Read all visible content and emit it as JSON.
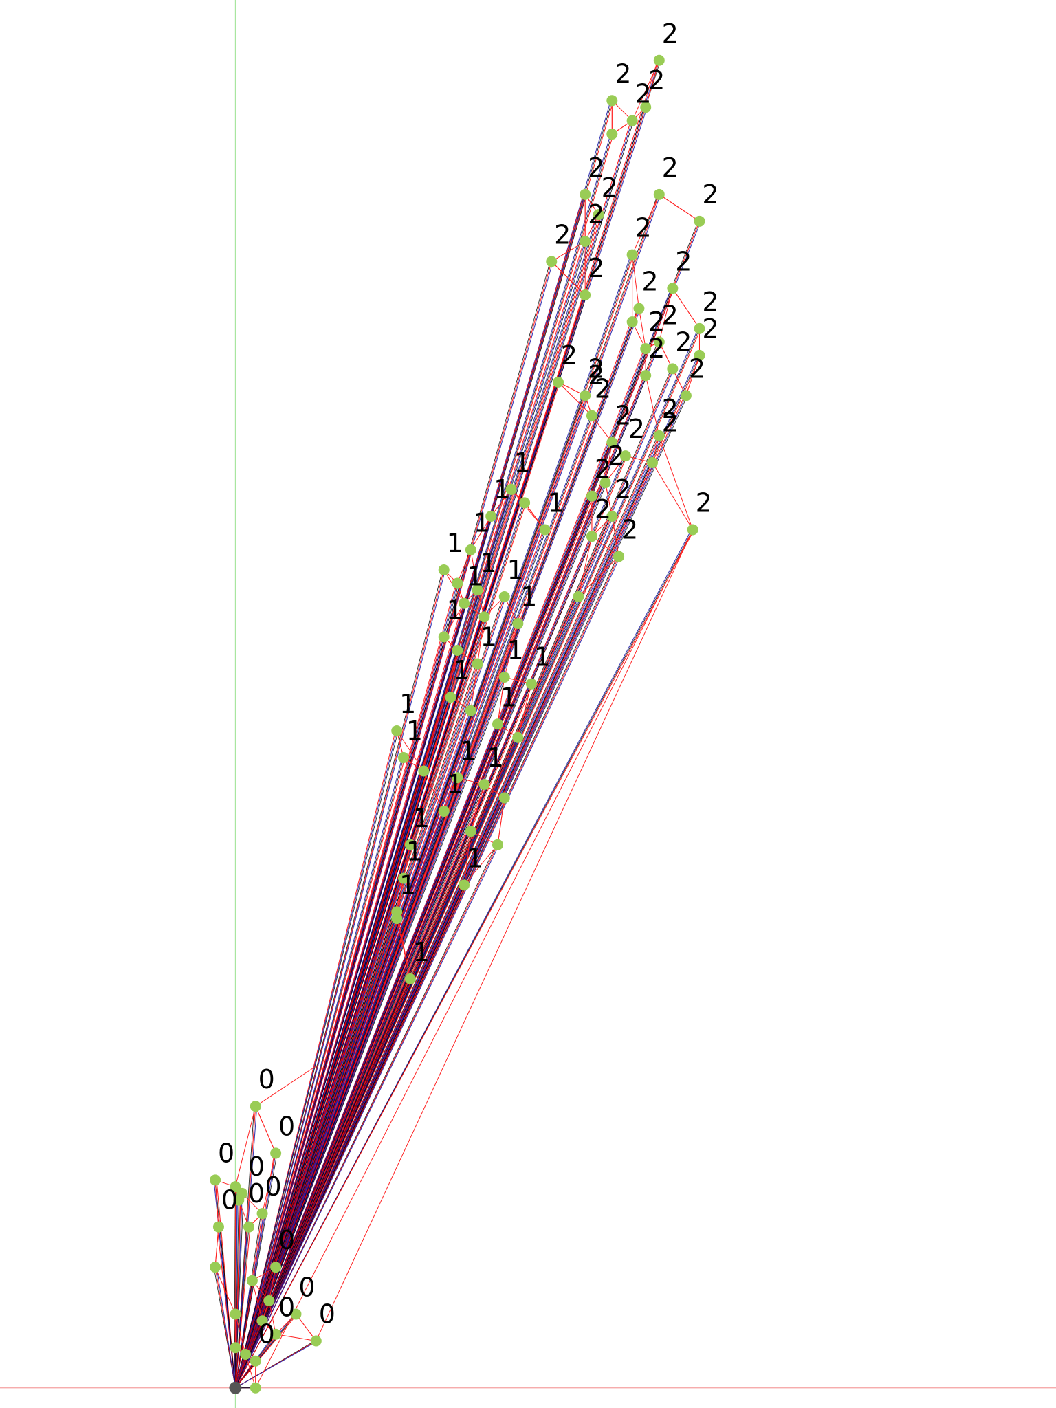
{
  "chart_data": {
    "type": "scatter",
    "title": "",
    "xlabel": "",
    "ylabel": "",
    "grid": false,
    "legend": "none",
    "axes_colors": {
      "x_axis": "#f4a0a0",
      "y_axis": "#a8e6a0"
    },
    "node_color": "#99cc55",
    "root_color": "#555555",
    "edge_colors": {
      "root_edges": [
        "#000000",
        "#ff0000",
        "#1a1aa8"
      ],
      "cluster_edges": "#ff2222"
    },
    "root": {
      "x": 0,
      "y": 0
    },
    "clusters": [
      {
        "label": "0",
        "points": [
          [
            0.3,
            4.2
          ],
          [
            0.6,
            3.5
          ],
          [
            -0.3,
            3.1
          ],
          [
            0.0,
            3.0
          ],
          [
            0.1,
            2.9
          ],
          [
            0.05,
            2.8
          ],
          [
            0.4,
            2.6
          ],
          [
            -0.25,
            2.4
          ],
          [
            0.2,
            2.4
          ],
          [
            -0.3,
            1.8
          ],
          [
            0.6,
            1.8
          ],
          [
            0.25,
            1.6
          ],
          [
            1.2,
            0.7
          ],
          [
            0.5,
            1.3
          ],
          [
            0.9,
            1.1
          ],
          [
            0.0,
            1.1
          ],
          [
            0.3,
            0.4
          ],
          [
            0.6,
            0.8
          ],
          [
            0.15,
            0.5
          ],
          [
            0.3,
            0.0
          ],
          [
            0.0,
            0.6
          ],
          [
            0.4,
            1.0
          ]
        ],
        "labelled": [
          [
            0.3,
            4.2
          ],
          [
            0.6,
            3.5
          ],
          [
            -0.3,
            3.1
          ],
          [
            0.15,
            2.9
          ],
          [
            0.15,
            2.5
          ],
          [
            0.4,
            2.6
          ],
          [
            -0.25,
            2.4
          ],
          [
            0.6,
            1.8
          ],
          [
            0.9,
            1.1
          ],
          [
            1.2,
            0.7
          ],
          [
            0.3,
            0.4
          ],
          [
            0.6,
            0.8
          ]
        ]
      },
      {
        "label": "1",
        "points": [
          [
            4.1,
            13.4
          ],
          [
            4.3,
            13.2
          ],
          [
            3.8,
            13.0
          ],
          [
            4.6,
            12.8
          ],
          [
            3.5,
            12.5
          ],
          [
            3.1,
            12.2
          ],
          [
            3.3,
            12.0
          ],
          [
            3.6,
            11.9
          ],
          [
            4.0,
            11.8
          ],
          [
            3.4,
            11.7
          ],
          [
            3.7,
            11.5
          ],
          [
            4.2,
            11.4
          ],
          [
            3.1,
            11.2
          ],
          [
            3.3,
            11.0
          ],
          [
            3.6,
            10.8
          ],
          [
            4.0,
            10.6
          ],
          [
            4.4,
            10.5
          ],
          [
            3.2,
            10.3
          ],
          [
            3.5,
            10.1
          ],
          [
            3.9,
            9.9
          ],
          [
            4.2,
            9.7
          ],
          [
            2.4,
            9.8
          ],
          [
            2.5,
            9.4
          ],
          [
            2.8,
            9.2
          ],
          [
            3.3,
            9.1
          ],
          [
            3.7,
            9.0
          ],
          [
            4.0,
            8.8
          ],
          [
            3.1,
            8.6
          ],
          [
            3.5,
            8.3
          ],
          [
            2.6,
            8.1
          ],
          [
            2.5,
            7.6
          ],
          [
            3.4,
            7.5
          ],
          [
            2.4,
            7.1
          ],
          [
            2.6,
            6.1
          ],
          [
            2.4,
            7.0
          ],
          [
            3.9,
            8.1
          ]
        ],
        "labelled": [
          [
            4.1,
            13.4
          ],
          [
            3.8,
            13.0
          ],
          [
            4.6,
            12.8
          ],
          [
            3.5,
            12.5
          ],
          [
            3.1,
            12.2
          ],
          [
            3.6,
            11.9
          ],
          [
            4.0,
            11.8
          ],
          [
            3.4,
            11.7
          ],
          [
            4.2,
            11.4
          ],
          [
            3.1,
            11.2
          ],
          [
            3.6,
            10.8
          ],
          [
            4.0,
            10.6
          ],
          [
            4.4,
            10.5
          ],
          [
            3.2,
            10.3
          ],
          [
            3.9,
            9.9
          ],
          [
            2.4,
            9.8
          ],
          [
            2.5,
            9.4
          ],
          [
            3.3,
            9.1
          ],
          [
            3.7,
            9.0
          ],
          [
            3.1,
            8.6
          ],
          [
            2.6,
            8.1
          ],
          [
            2.5,
            7.6
          ],
          [
            3.4,
            7.5
          ],
          [
            2.4,
            7.1
          ],
          [
            2.6,
            6.1
          ]
        ]
      },
      {
        "label": "2",
        "points": [
          [
            6.3,
            19.8
          ],
          [
            5.6,
            19.2
          ],
          [
            6.1,
            19.1
          ],
          [
            5.9,
            18.9
          ],
          [
            5.6,
            18.7
          ],
          [
            6.3,
            17.8
          ],
          [
            5.2,
            17.8
          ],
          [
            5.4,
            17.5
          ],
          [
            6.9,
            17.4
          ],
          [
            5.2,
            17.1
          ],
          [
            5.9,
            16.9
          ],
          [
            4.7,
            16.8
          ],
          [
            5.2,
            16.3
          ],
          [
            6.5,
            16.4
          ],
          [
            6.0,
            16.1
          ],
          [
            5.9,
            15.9
          ],
          [
            6.9,
            15.8
          ],
          [
            6.3,
            15.6
          ],
          [
            6.1,
            15.5
          ],
          [
            6.9,
            15.4
          ],
          [
            6.5,
            15.2
          ],
          [
            6.1,
            15.1
          ],
          [
            4.8,
            15.0
          ],
          [
            5.2,
            14.8
          ],
          [
            6.7,
            14.8
          ],
          [
            5.3,
            14.5
          ],
          [
            6.3,
            14.2
          ],
          [
            5.6,
            14.1
          ],
          [
            5.8,
            13.9
          ],
          [
            6.2,
            13.8
          ],
          [
            5.5,
            13.5
          ],
          [
            5.3,
            13.3
          ],
          [
            5.6,
            13.0
          ],
          [
            5.3,
            12.7
          ],
          [
            6.8,
            12.8
          ],
          [
            5.7,
            12.4
          ],
          [
            5.1,
            11.8
          ]
        ],
        "labelled": [
          [
            6.3,
            19.8
          ],
          [
            5.6,
            19.2
          ],
          [
            6.1,
            19.1
          ],
          [
            5.9,
            18.9
          ],
          [
            5.2,
            17.8
          ],
          [
            6.3,
            17.8
          ],
          [
            5.4,
            17.5
          ],
          [
            6.9,
            17.4
          ],
          [
            5.2,
            17.1
          ],
          [
            5.9,
            16.9
          ],
          [
            4.7,
            16.8
          ],
          [
            5.2,
            16.3
          ],
          [
            6.5,
            16.4
          ],
          [
            6.0,
            16.1
          ],
          [
            6.9,
            15.8
          ],
          [
            6.3,
            15.6
          ],
          [
            6.1,
            15.5
          ],
          [
            6.9,
            15.4
          ],
          [
            6.5,
            15.2
          ],
          [
            6.1,
            15.1
          ],
          [
            4.8,
            15.0
          ],
          [
            5.2,
            14.8
          ],
          [
            5.2,
            14.7
          ],
          [
            6.7,
            14.8
          ],
          [
            5.3,
            14.5
          ],
          [
            6.3,
            14.2
          ],
          [
            6.3,
            14.0
          ],
          [
            5.6,
            14.1
          ],
          [
            5.8,
            13.9
          ],
          [
            5.5,
            13.5
          ],
          [
            5.3,
            13.3
          ],
          [
            5.6,
            13.0
          ],
          [
            5.3,
            12.7
          ],
          [
            6.8,
            12.8
          ],
          [
            5.7,
            12.4
          ]
        ]
      }
    ],
    "cluster_links": [
      [
        [
          0.3,
          4.2
        ],
        [
          1.2,
          4.8
        ]
      ],
      [
        [
          1.2,
          0.7
        ],
        [
          6.8,
          12.8
        ]
      ],
      [
        [
          0.3,
          0.0
        ],
        [
          6.8,
          12.8
        ]
      ]
    ],
    "xlim": [
      -3.5,
      12.2
    ],
    "ylim": [
      -0.3,
      20.7
    ]
  }
}
